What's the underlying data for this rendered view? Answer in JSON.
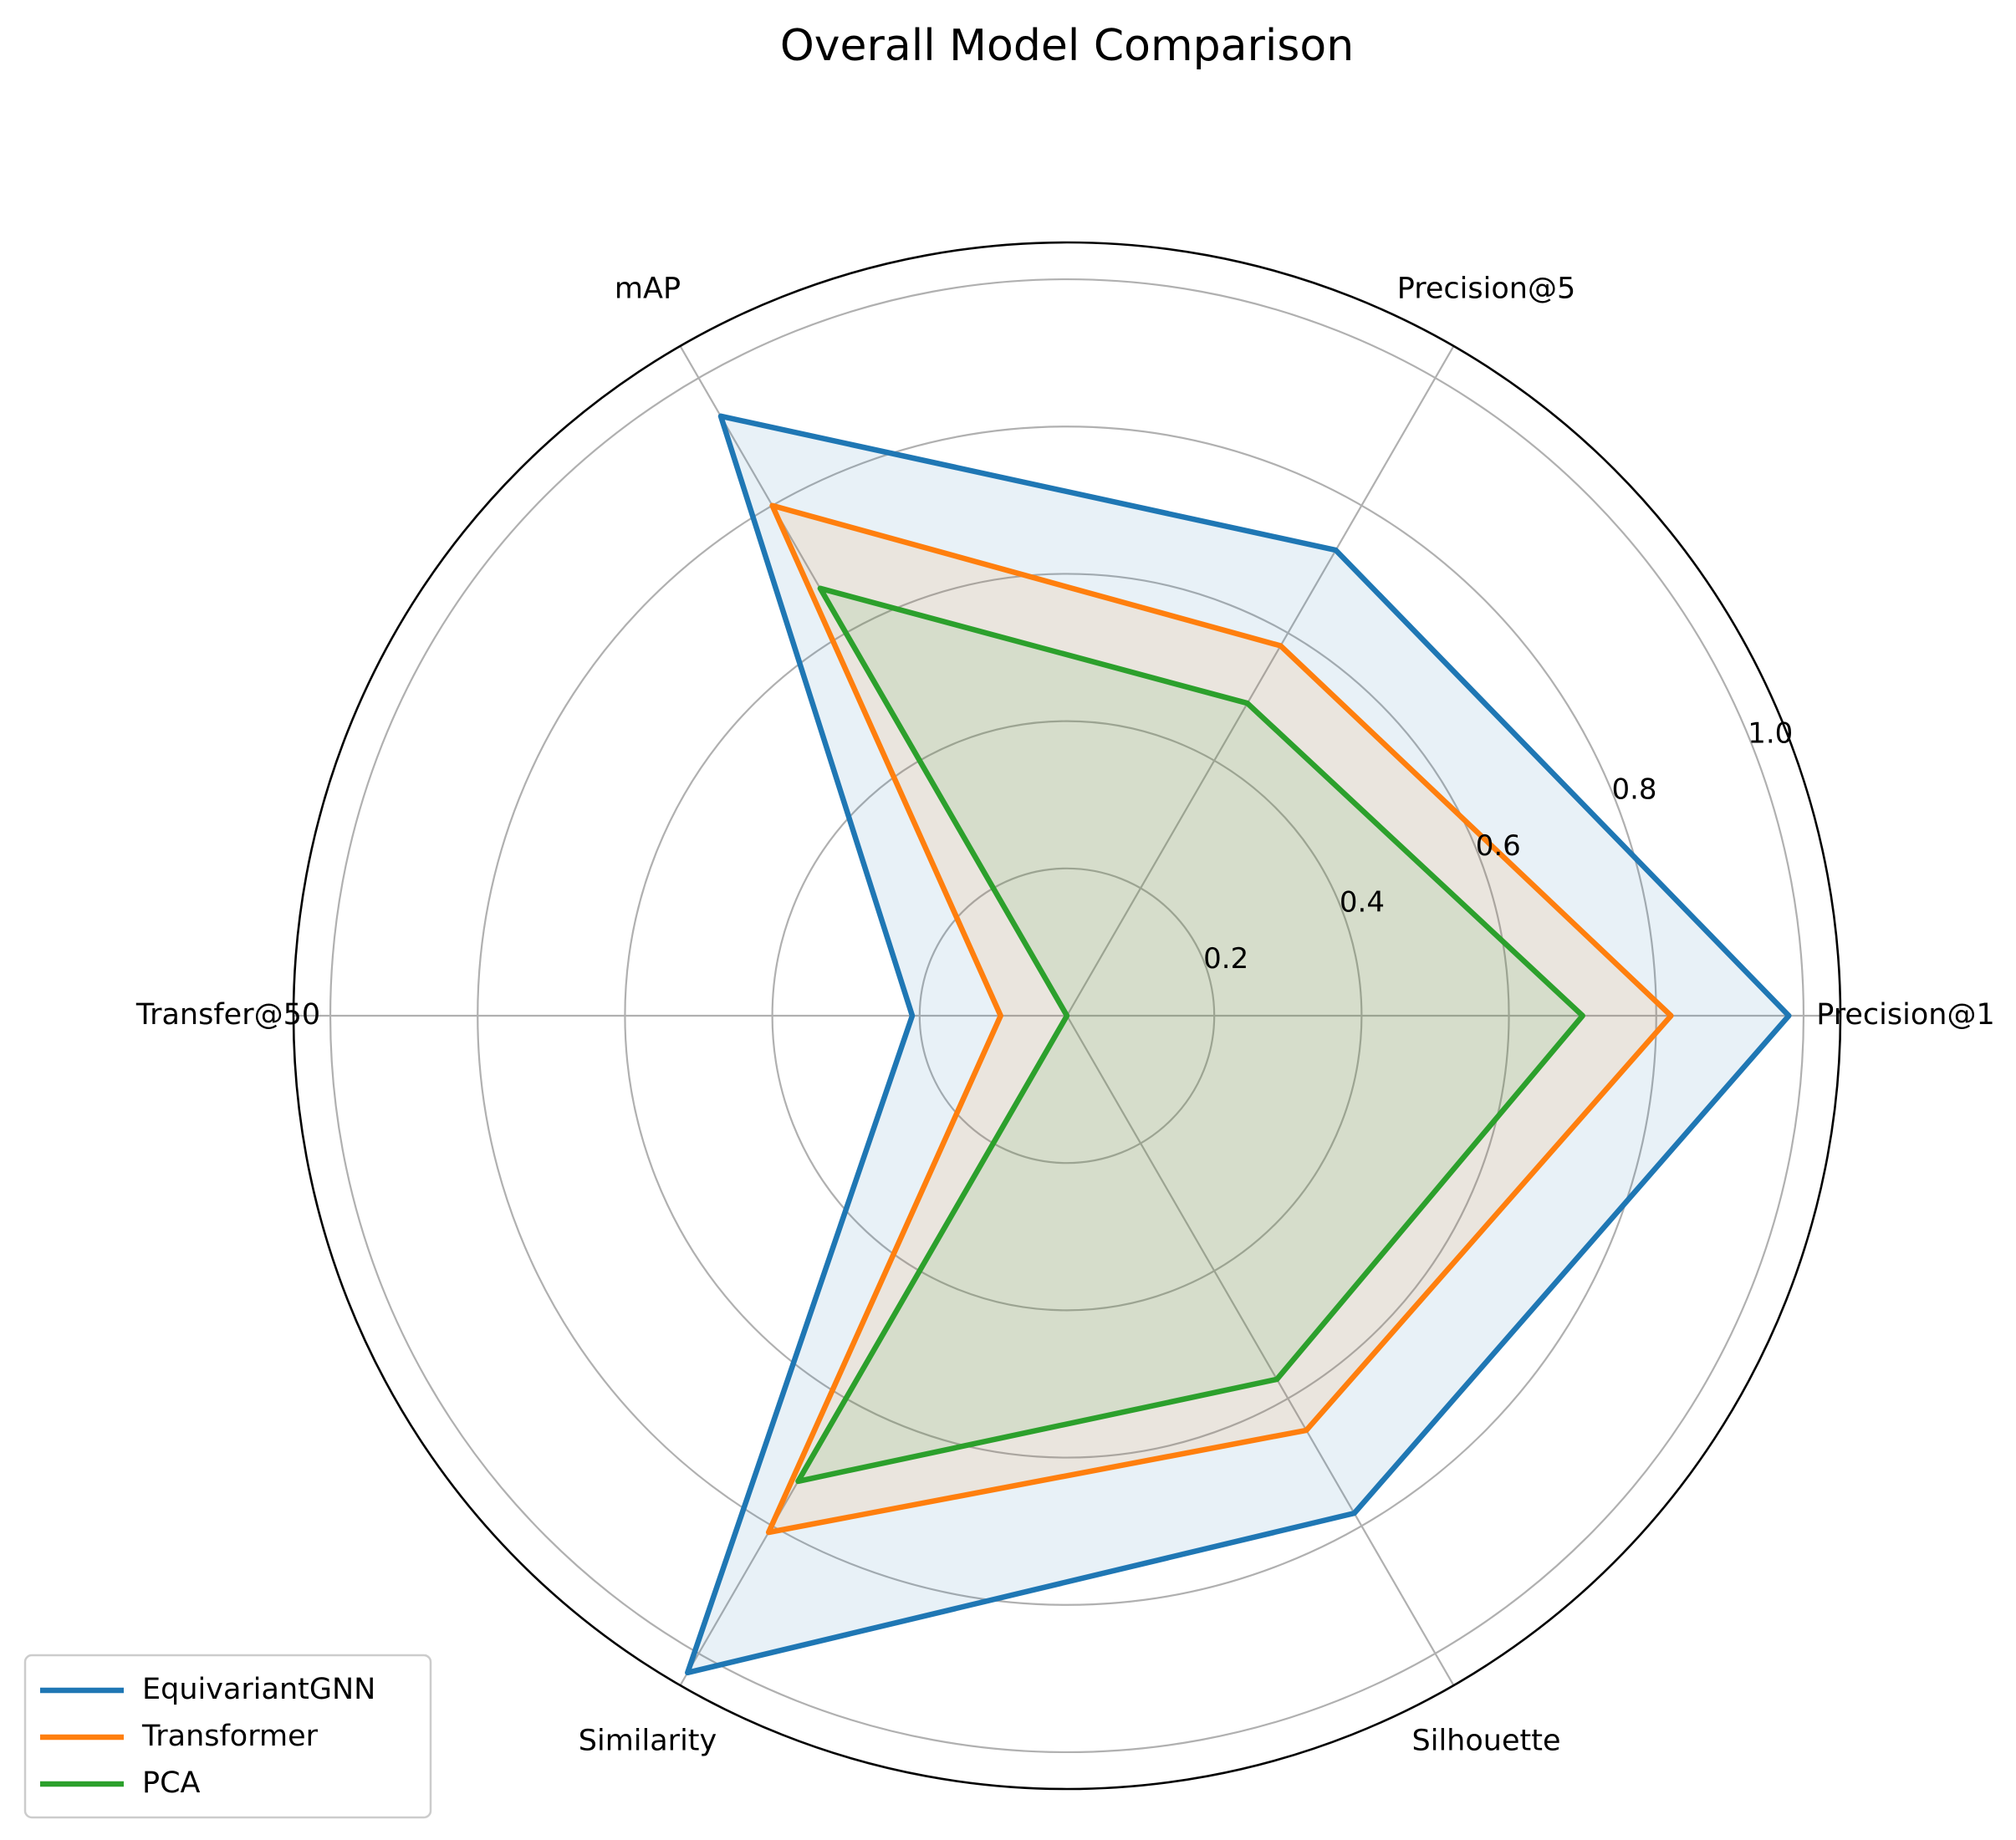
{
  "chart_data": {
    "type": "radar",
    "title": "Overall Model Comparison",
    "categories": [
      "Precision@1",
      "Precision@5",
      "mAP",
      "Transfer@50",
      "Similarity",
      "Silhouette"
    ],
    "rlim": [
      0,
      1.05
    ],
    "rticks": [
      0.2,
      0.4,
      0.6,
      0.8,
      1.0
    ],
    "rtick_labels": [
      "0.2",
      "0.4",
      "0.6",
      "0.8",
      "1.0"
    ],
    "grid": true,
    "legend_position": "bottom-left",
    "series": [
      {
        "name": "EquivariantGNN",
        "color": "#1f77b4",
        "values": [
          0.98,
          0.73,
          0.94,
          0.21,
          1.03,
          0.78
        ]
      },
      {
        "name": "Transformer",
        "color": "#ff7f0e",
        "values": [
          0.82,
          0.58,
          0.8,
          0.09,
          0.81,
          0.65
        ]
      },
      {
        "name": "PCA",
        "color": "#2ca02c",
        "values": [
          0.7,
          0.49,
          0.67,
          0.0,
          0.73,
          0.57
        ]
      }
    ]
  }
}
